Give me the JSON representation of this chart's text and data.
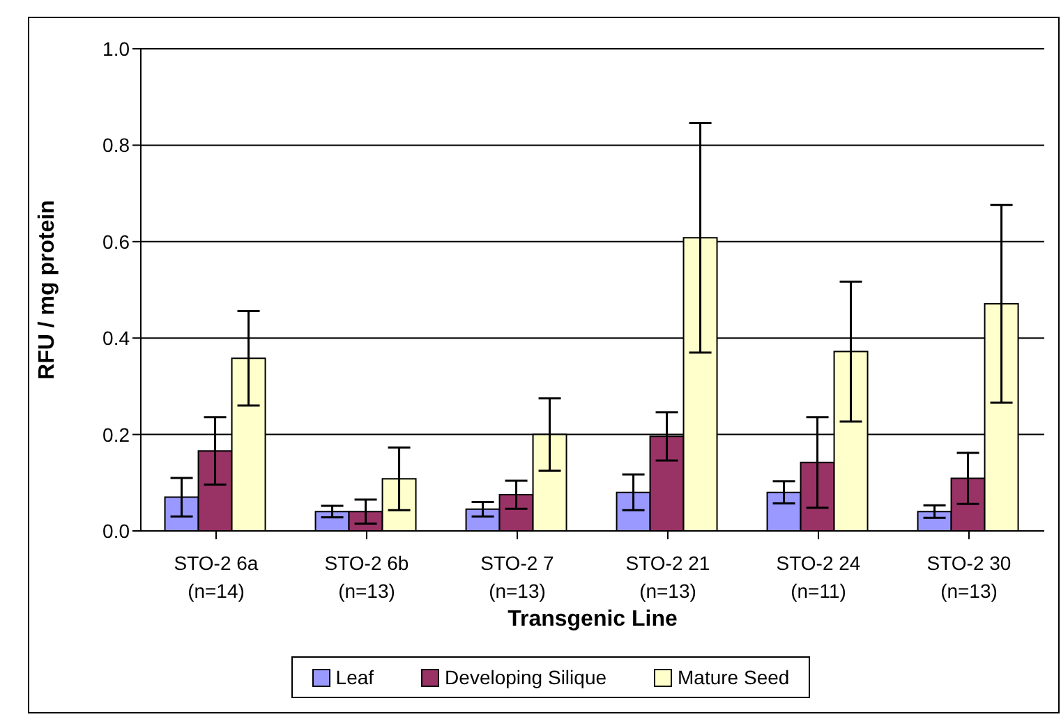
{
  "chart_data": {
    "type": "bar",
    "xlabel": "Transgenic Line",
    "ylabel": "RFU / mg protein",
    "categories": [
      "STO-2 6a\n(n=14)",
      "STO-2 6b\n(n=13)",
      "STO-2 7\n(n=13)",
      "STO-2 21\n(n=13)",
      "STO-2 24\n(n=11)",
      "STO-2 30\n(n=13)"
    ],
    "series": [
      {
        "name": "Leaf",
        "color": "#9999ff",
        "values": [
          0.07,
          0.04,
          0.045,
          0.08,
          0.08,
          0.04
        ],
        "errors": [
          0.04,
          0.012,
          0.015,
          0.037,
          0.023,
          0.013
        ]
      },
      {
        "name": "Developing Silique",
        "color": "#993366",
        "values": [
          0.166,
          0.04,
          0.075,
          0.196,
          0.142,
          0.109
        ],
        "errors": [
          0.07,
          0.025,
          0.029,
          0.05,
          0.094,
          0.053
        ]
      },
      {
        "name": "Mature Seed",
        "color": "#ffffcc",
        "values": [
          0.358,
          0.108,
          0.2,
          0.608,
          0.372,
          0.471
        ],
        "errors": [
          0.098,
          0.065,
          0.075,
          0.238,
          0.145,
          0.205
        ]
      }
    ],
    "ylim": [
      0,
      1
    ],
    "yticks": [
      {
        "value": 0,
        "label": "0.0"
      },
      {
        "value": 0.2,
        "label": "0.2"
      },
      {
        "value": 0.4,
        "label": "0.4"
      },
      {
        "value": 0.6,
        "label": "0.6"
      },
      {
        "value": 0.8,
        "label": "0.8"
      },
      {
        "value": 1,
        "label": "1.0"
      }
    ],
    "grid": "y",
    "legend": "bottom"
  }
}
